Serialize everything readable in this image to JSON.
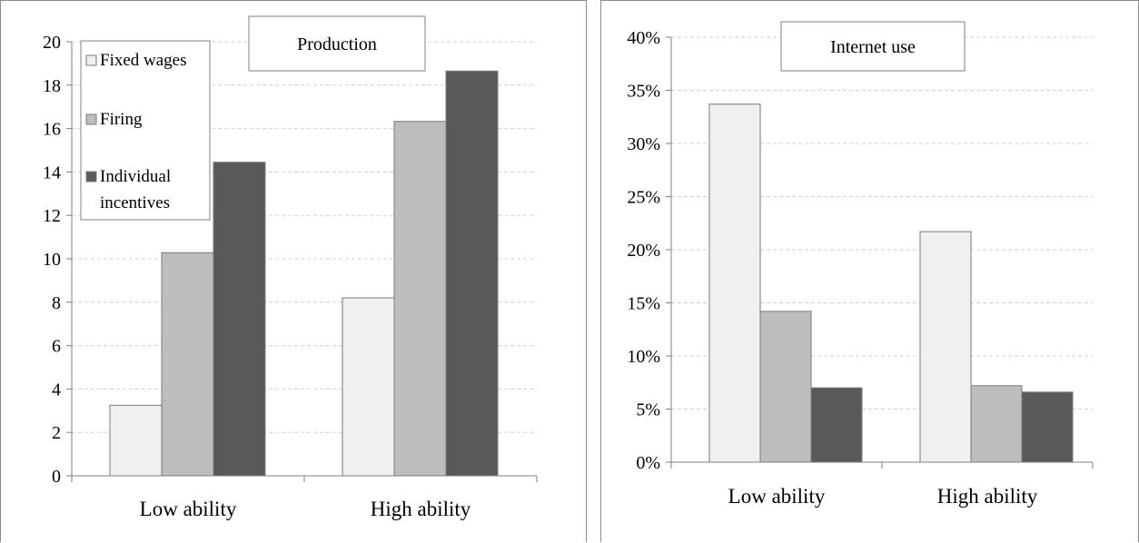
{
  "chart_data": [
    {
      "type": "bar",
      "title": "Production",
      "categories": [
        "Low ability",
        "High ability"
      ],
      "series": [
        {
          "name": "Fixed wages",
          "values": [
            3.25,
            8.2
          ],
          "color": "#f0f0f0"
        },
        {
          "name": "Firing",
          "values": [
            10.28,
            16.33
          ],
          "color": "#bdbdbd"
        },
        {
          "name": "Individual incentives",
          "values": [
            14.45,
            18.65
          ],
          "color": "#595959"
        }
      ],
      "ylim": [
        0,
        20
      ],
      "yticks": [
        "0",
        "2",
        "4",
        "6",
        "8",
        "10",
        "12",
        "14",
        "16",
        "18",
        "20"
      ],
      "grid": true,
      "legend": "top-left"
    },
    {
      "type": "bar",
      "title": "Internet use",
      "categories": [
        "Low ability",
        "High ability"
      ],
      "series": [
        {
          "values": [
            33.7,
            21.7
          ],
          "color": "#f0f0f0"
        },
        {
          "values": [
            14.2,
            7.2
          ],
          "color": "#bdbdbd"
        },
        {
          "values": [
            7.0,
            6.6
          ],
          "color": "#595959"
        }
      ],
      "ylim": [
        0,
        40
      ],
      "yticks": [
        "0%",
        "5%",
        "10%",
        "15%",
        "20%",
        "25%",
        "30%",
        "35%",
        "40%"
      ],
      "grid": true
    }
  ]
}
